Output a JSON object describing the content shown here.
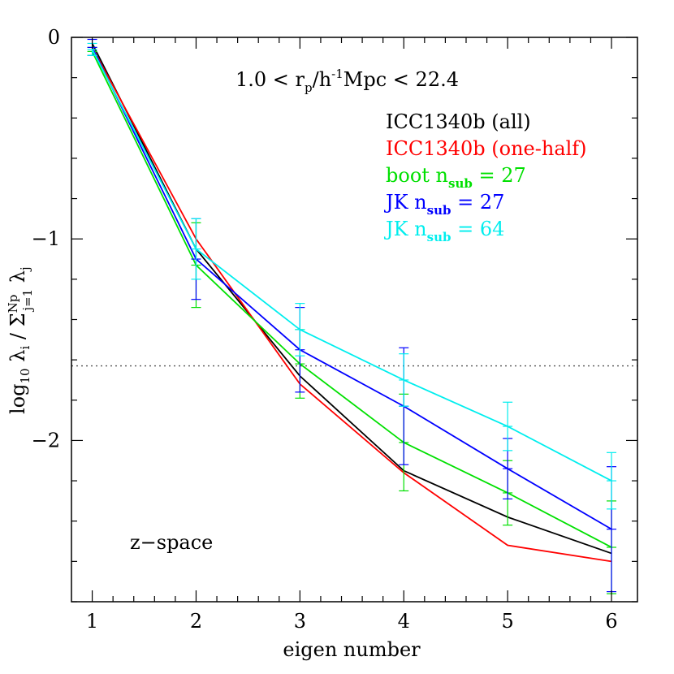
{
  "chart_data": {
    "type": "line",
    "title": "1.0 < rp/h-1Mpc < 22.4",
    "title_parts": {
      "pre": "1.0 < r",
      "sub_p": "p",
      "mid": "/h",
      "sup": "-1",
      "post": "Mpc < 22.4"
    },
    "xlabel": "eigen number",
    "ylabel": "log10 λi / ΣNp j=1 λj",
    "ylabel_parts": {
      "log": "log",
      "log_sub": "10",
      "lambda_i": "λ",
      "i_sub": "i",
      "slash": "/",
      "sum": "Σ",
      "sum_sup": "Np",
      "sum_sub": "j=1",
      "lambda_j": "λ",
      "j_sub": "j"
    },
    "annotation": "z−space",
    "x": [
      1,
      2,
      3,
      4,
      5,
      6
    ],
    "xlim": [
      0.8,
      6.25
    ],
    "ylim": [
      -2.8,
      0.0
    ],
    "xticks": [
      1,
      2,
      3,
      4,
      5,
      6
    ],
    "yticks": [
      0,
      -1,
      -2
    ],
    "ytick_labels": [
      "0",
      "−1",
      "−2"
    ],
    "reference_line": {
      "y": -1.63,
      "style": "dotted"
    },
    "series": [
      {
        "name": "ICC1340b (all)",
        "label_parts": [
          "ICC1340b (all)"
        ],
        "color": "#000000",
        "values": [
          -0.03,
          -1.05,
          -1.68,
          -2.15,
          -2.38,
          -2.56
        ],
        "errors": [
          0,
          0,
          0,
          0,
          0,
          0
        ]
      },
      {
        "name": "ICC1340b (one-half)",
        "label_parts": [
          "ICC1340b (one-half)"
        ],
        "color": "#ff0000",
        "values": [
          -0.05,
          -1.0,
          -1.72,
          -2.16,
          -2.52,
          -2.6
        ],
        "errors": [
          0,
          0,
          0,
          0,
          0,
          0
        ]
      },
      {
        "name": "boot nsub = 27",
        "label_parts": [
          "boot n",
          "sub",
          " = 27"
        ],
        "color": "#00e000",
        "values": [
          -0.07,
          -1.13,
          -1.62,
          -2.01,
          -2.26,
          -2.53
        ],
        "errors": [
          0.02,
          0.21,
          0.17,
          0.24,
          0.16,
          0.23
        ]
      },
      {
        "name": "JK nsub = 27",
        "label_parts": [
          "JK n",
          "sub",
          " = 27"
        ],
        "color": "#0000ff",
        "values": [
          -0.05,
          -1.1,
          -1.55,
          -1.83,
          -2.14,
          -2.44
        ],
        "errors": [
          0.04,
          0.2,
          0.21,
          0.29,
          0.15,
          0.31
        ]
      },
      {
        "name": "JK nsub = 64",
        "label_parts": [
          "JK n",
          "sub",
          " = 64"
        ],
        "color": "#00eeee",
        "values": [
          -0.06,
          -1.05,
          -1.45,
          -1.7,
          -1.93,
          -2.2
        ],
        "errors": [
          0.03,
          0.15,
          0.13,
          0.13,
          0.12,
          0.14
        ]
      }
    ]
  }
}
